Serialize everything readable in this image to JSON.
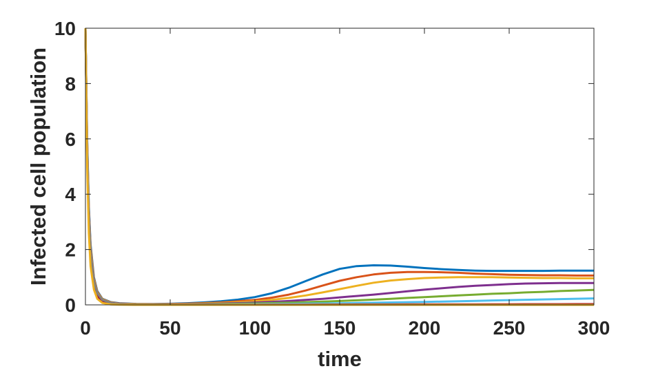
{
  "chart_data": {
    "type": "line",
    "xlabel": "time",
    "ylabel": "Infected cell population",
    "xlim": [
      0,
      300
    ],
    "ylim": [
      0,
      10
    ],
    "xticks": [
      "0",
      "50",
      "100",
      "150",
      "200",
      "250",
      "300"
    ],
    "yticks": [
      "0",
      "2",
      "4",
      "6",
      "8",
      "10"
    ],
    "grid": false,
    "box": true,
    "series": [
      {
        "color": "#0072BD",
        "x": [
          0,
          1,
          2,
          3,
          5,
          7,
          10,
          15,
          20,
          30,
          40,
          50,
          60,
          70,
          80,
          90,
          100,
          110,
          120,
          130,
          140,
          150,
          160,
          170,
          180,
          190,
          200,
          210,
          220,
          230,
          240,
          250,
          260,
          270,
          280,
          290,
          300
        ],
        "y": [
          10,
          6.0,
          3.6,
          2.2,
          1.0,
          0.5,
          0.22,
          0.1,
          0.06,
          0.035,
          0.03,
          0.04,
          0.06,
          0.09,
          0.13,
          0.19,
          0.28,
          0.42,
          0.62,
          0.86,
          1.1,
          1.3,
          1.4,
          1.43,
          1.42,
          1.38,
          1.33,
          1.29,
          1.26,
          1.24,
          1.23,
          1.23,
          1.23,
          1.23,
          1.24,
          1.24,
          1.24
        ]
      },
      {
        "color": "#D95319",
        "x": [
          0,
          1,
          2,
          3,
          5,
          7,
          10,
          15,
          20,
          30,
          40,
          50,
          60,
          70,
          80,
          90,
          100,
          110,
          120,
          130,
          140,
          150,
          160,
          170,
          180,
          190,
          200,
          210,
          220,
          230,
          240,
          250,
          260,
          270,
          280,
          290,
          300
        ],
        "y": [
          10,
          5.9,
          3.5,
          2.1,
          0.95,
          0.47,
          0.21,
          0.09,
          0.05,
          0.03,
          0.025,
          0.03,
          0.045,
          0.065,
          0.09,
          0.13,
          0.18,
          0.26,
          0.37,
          0.52,
          0.7,
          0.87,
          1.0,
          1.1,
          1.16,
          1.19,
          1.19,
          1.18,
          1.16,
          1.13,
          1.11,
          1.09,
          1.08,
          1.07,
          1.07,
          1.06,
          1.06
        ]
      },
      {
        "color": "#EDB120",
        "x": [
          0,
          1,
          2,
          3,
          5,
          7,
          10,
          15,
          20,
          30,
          40,
          50,
          60,
          70,
          80,
          90,
          100,
          110,
          120,
          130,
          140,
          150,
          160,
          170,
          180,
          190,
          200,
          210,
          220,
          230,
          240,
          250,
          260,
          270,
          280,
          290,
          300
        ],
        "y": [
          10,
          5.8,
          3.4,
          2.0,
          0.9,
          0.44,
          0.2,
          0.08,
          0.045,
          0.025,
          0.02,
          0.025,
          0.035,
          0.05,
          0.07,
          0.095,
          0.13,
          0.18,
          0.25,
          0.34,
          0.45,
          0.57,
          0.69,
          0.8,
          0.88,
          0.93,
          0.97,
          0.99,
          1.0,
          1.0,
          1.0,
          0.99,
          0.98,
          0.97,
          0.97,
          0.96,
          0.96
        ]
      },
      {
        "color": "#7E2F8E",
        "x": [
          0,
          1,
          2,
          3,
          5,
          7,
          10,
          15,
          20,
          30,
          40,
          50,
          60,
          70,
          80,
          90,
          100,
          110,
          120,
          130,
          140,
          150,
          160,
          170,
          180,
          190,
          200,
          210,
          220,
          230,
          240,
          250,
          260,
          270,
          280,
          290,
          300
        ],
        "y": [
          10,
          5.7,
          3.3,
          1.9,
          0.85,
          0.41,
          0.18,
          0.07,
          0.04,
          0.02,
          0.015,
          0.018,
          0.025,
          0.035,
          0.047,
          0.063,
          0.085,
          0.11,
          0.14,
          0.18,
          0.22,
          0.27,
          0.32,
          0.37,
          0.43,
          0.49,
          0.55,
          0.6,
          0.65,
          0.69,
          0.72,
          0.75,
          0.77,
          0.78,
          0.79,
          0.79,
          0.79
        ]
      },
      {
        "color": "#77AC30",
        "x": [
          0,
          1,
          2,
          3,
          5,
          7,
          10,
          15,
          20,
          30,
          40,
          50,
          60,
          70,
          80,
          90,
          100,
          110,
          120,
          130,
          140,
          150,
          160,
          170,
          180,
          190,
          200,
          210,
          220,
          230,
          240,
          250,
          260,
          270,
          280,
          290,
          300
        ],
        "y": [
          10,
          5.6,
          3.2,
          1.8,
          0.8,
          0.38,
          0.16,
          0.06,
          0.03,
          0.015,
          0.01,
          0.012,
          0.016,
          0.022,
          0.03,
          0.04,
          0.052,
          0.066,
          0.083,
          0.1,
          0.12,
          0.14,
          0.165,
          0.19,
          0.22,
          0.25,
          0.28,
          0.31,
          0.34,
          0.37,
          0.4,
          0.42,
          0.45,
          0.47,
          0.5,
          0.52,
          0.54
        ]
      },
      {
        "color": "#4DBEEE",
        "x": [
          0,
          1,
          2,
          3,
          5,
          7,
          10,
          15,
          20,
          30,
          40,
          50,
          60,
          70,
          80,
          90,
          100,
          110,
          120,
          130,
          140,
          150,
          160,
          170,
          180,
          190,
          200,
          210,
          220,
          230,
          240,
          250,
          260,
          270,
          280,
          290,
          300
        ],
        "y": [
          10,
          5.5,
          3.1,
          1.75,
          0.76,
          0.35,
          0.14,
          0.05,
          0.025,
          0.01,
          0.007,
          0.007,
          0.009,
          0.012,
          0.015,
          0.019,
          0.024,
          0.03,
          0.036,
          0.043,
          0.05,
          0.058,
          0.067,
          0.076,
          0.086,
          0.097,
          0.108,
          0.12,
          0.132,
          0.145,
          0.158,
          0.171,
          0.184,
          0.197,
          0.21,
          0.222,
          0.235
        ]
      },
      {
        "color": "#A2142F",
        "x": [
          0,
          1,
          2,
          3,
          5,
          7,
          10,
          15,
          20,
          30,
          40,
          50,
          60,
          70,
          80,
          90,
          100,
          110,
          120,
          130,
          140,
          150,
          160,
          170,
          180,
          190,
          200,
          210,
          220,
          230,
          240,
          250,
          260,
          270,
          280,
          290,
          300
        ],
        "y": [
          10,
          5.4,
          3.0,
          1.7,
          0.72,
          0.32,
          0.12,
          0.04,
          0.02,
          0.008,
          0.005,
          0.004,
          0.004,
          0.005,
          0.006,
          0.007,
          0.008,
          0.009,
          0.01,
          0.011,
          0.012,
          0.013,
          0.014,
          0.015,
          0.016,
          0.017,
          0.018,
          0.019,
          0.02,
          0.021,
          0.022,
          0.023,
          0.024,
          0.025,
          0.026,
          0.027,
          0.028
        ]
      },
      {
        "color": "#808080",
        "x": [
          0,
          1,
          2,
          3,
          5,
          7,
          10,
          15,
          20,
          30,
          40,
          50,
          60,
          80,
          100,
          150,
          200,
          250,
          300
        ],
        "y": [
          10,
          5.6,
          3.3,
          1.9,
          0.85,
          0.42,
          0.18,
          0.07,
          0.035,
          0.012,
          0.006,
          0.004,
          0.003,
          0.002,
          0.002,
          0.001,
          0.001,
          0.001,
          0.001
        ]
      },
      {
        "color": "#EDB120",
        "x": [
          0,
          1,
          2,
          3,
          5,
          7,
          10,
          15,
          20,
          30,
          40,
          50,
          100,
          150,
          200,
          250,
          300
        ],
        "y": [
          10,
          5.0,
          2.6,
          1.4,
          0.55,
          0.22,
          0.07,
          0.015,
          0.004,
          0.001,
          0,
          0,
          0,
          0,
          0,
          0,
          0
        ]
      }
    ]
  }
}
